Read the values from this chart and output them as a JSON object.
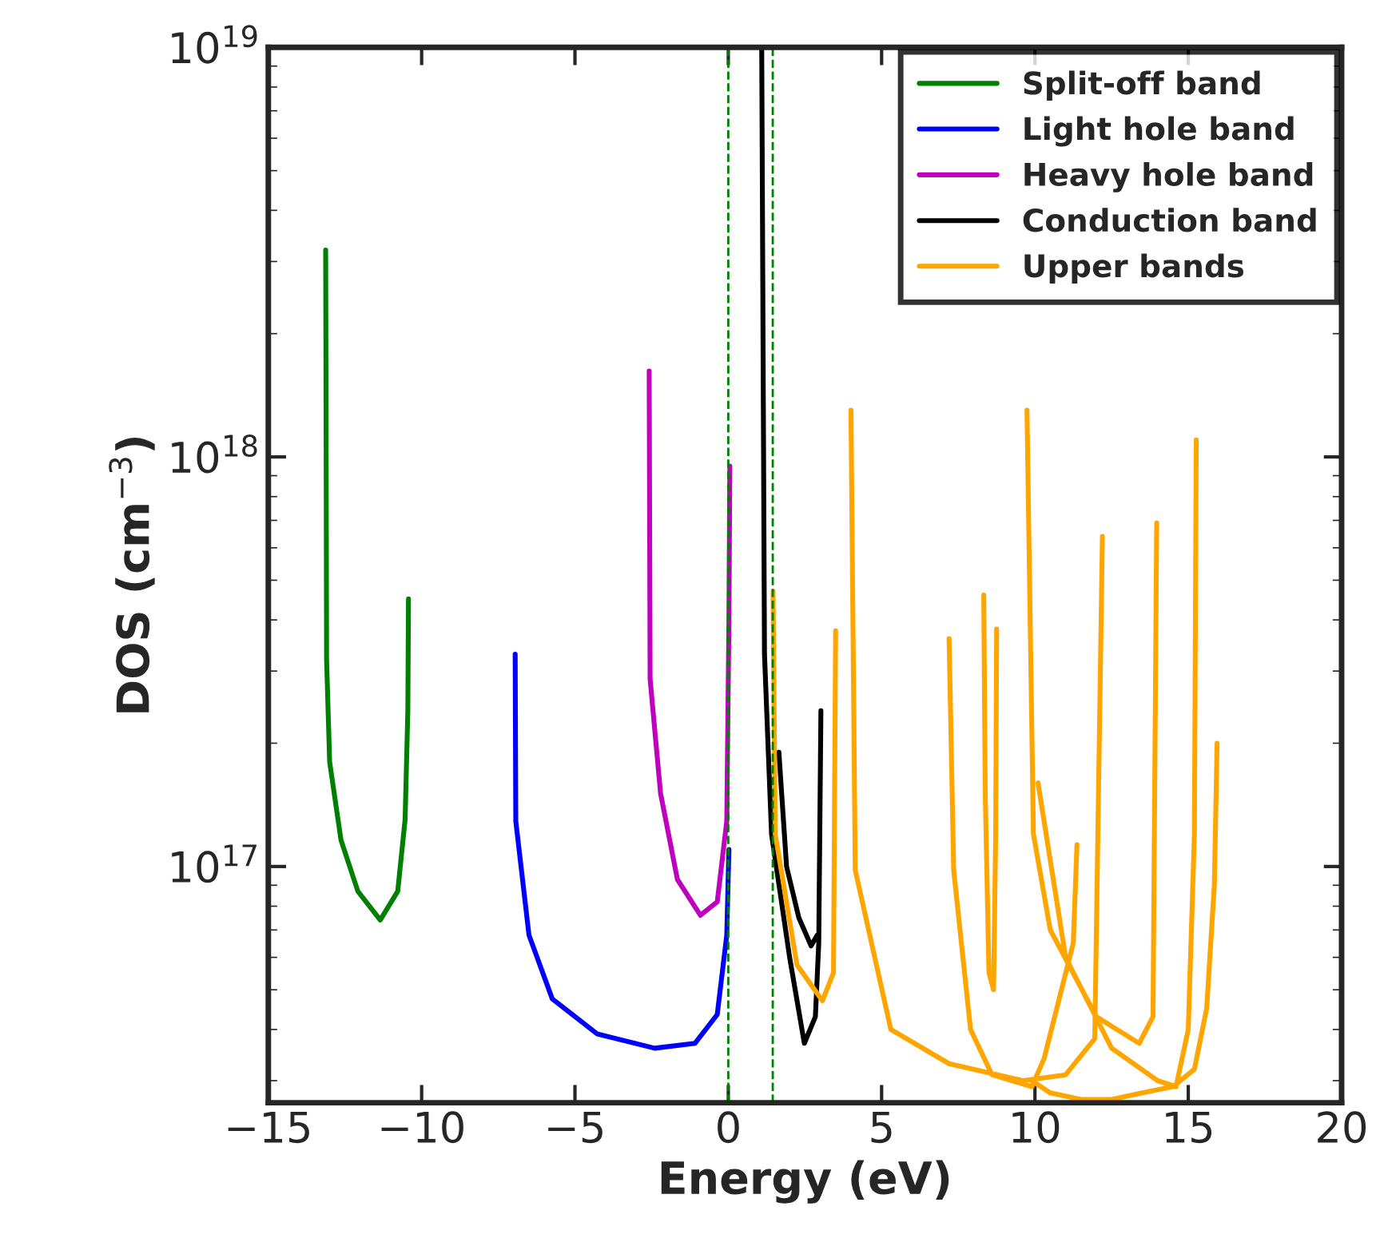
{
  "chart_data": {
    "type": "line",
    "xlabel": "Energy (eV)",
    "ylabel": "DOS (cm$^{−3}$)",
    "log": "y",
    "grid": false,
    "legend": "top right",
    "line_style": "solid",
    "marker": "none",
    "xlim": [
      -15,
      20
    ],
    "xticks": [
      {
        "value": -15,
        "label": "−15"
      },
      {
        "value": -10,
        "label": "−10"
      },
      {
        "value": -5,
        "label": "−5"
      },
      0,
      5,
      10,
      15,
      20
    ],
    "ylim": [
      2.65e+16,
      1e+19
    ],
    "yticks": [
      {
        "value": 1e+17,
        "label": "10$^{17}$"
      },
      {
        "value": 1e+18,
        "label": "10$^{18}$"
      },
      {
        "value": 1e+19,
        "label": "10$^{19}$"
      }
    ],
    "ref_lines": [
      {
        "axis": "x",
        "value": 0,
        "color": "#008000",
        "line_style": "dashed"
      },
      {
        "axis": "x",
        "value": 1.45,
        "color": "#008000",
        "line_style": "dashed"
      }
    ],
    "series": [
      {
        "name": "Split-off band",
        "color": "#008000",
        "x": [
          -13.13,
          -13.12,
          -13.1,
          -13.0,
          -12.63,
          -12.08,
          -11.35,
          -10.78,
          -10.54,
          -10.45,
          -10.43
        ],
        "values": [
          3.2e+18,
          1.6e+18,
          3.2e+17,
          1.8e+17,
          1.16e+17,
          8.7e+16,
          7.4e+16,
          8.7e+16,
          1.3e+17,
          2.4e+17,
          4.5e+17
        ]
      },
      {
        "name": "Light hole band",
        "color": "#0000ff",
        "x": [
          -6.95,
          -6.93,
          -6.5,
          -5.74,
          -4.27,
          -2.4,
          -1.09,
          -0.36,
          -0.05,
          0.02
        ],
        "values": [
          3.3e+17,
          1.29e+17,
          6.8e+16,
          4.75e+16,
          3.9e+16,
          3.6e+16,
          3.7e+16,
          4.35e+16,
          6.8e+16,
          1.1e+17
        ]
      },
      {
        "name": "Heavy hole band",
        "color": "#bf00bf",
        "x": [
          -2.58,
          -2.55,
          -2.21,
          -1.66,
          -0.91,
          -0.36,
          -0.05,
          0.02,
          0.05
        ],
        "values": [
          1.62e+18,
          2.87e+17,
          1.51e+17,
          9.3e+16,
          7.6e+16,
          8.2e+16,
          1.29e+17,
          3.95e+17,
          9.5e+17
        ]
      },
      {
        "name": "Conduction band",
        "color": "#000000",
        "x": [
          1.09,
          1.18,
          1.41,
          2.0,
          2.48,
          2.84,
          2.95,
          3.02,
          null,
          1.65,
          1.9,
          2.3,
          2.7,
          2.9
        ],
        "values": [
          1e+19,
          3.3e+17,
          1.2e+17,
          6e+16,
          3.7e+16,
          4.3e+16,
          6.5e+16,
          2.4e+17,
          null,
          1.9e+17,
          1e+17,
          7.5e+16,
          6.4e+16,
          6.8e+16
        ]
      },
      {
        "name": "Upper bands",
        "color": "#ffa500",
        "x": [
          1.46,
          1.53,
          2.24,
          3.07,
          3.43,
          3.5,
          null,
          4.0,
          4.14,
          5.3,
          7.2,
          9.6,
          11.0,
          11.95,
          12.2,
          null,
          7.2,
          7.35,
          7.9,
          8.6,
          9.9,
          10.3,
          11.25,
          11.37,
          null,
          8.33,
          8.38,
          8.5,
          8.65,
          8.72,
          8.75,
          null,
          9.74,
          9.95,
          10.5,
          12.0,
          13.4,
          13.85,
          13.97,
          null,
          10.1,
          11.0,
          12.5,
          14.0,
          14.6,
          15.0,
          15.2,
          15.26,
          null,
          9.9,
          10.5,
          11.5,
          12.5,
          13.5,
          14.5,
          15.2,
          15.6,
          15.85,
          15.94
        ],
        "values": [
          4.7e+17,
          1.2e+17,
          5.75e+16,
          4.7e+16,
          5.5e+16,
          3.76e+17,
          null,
          1.3e+18,
          9.8e+16,
          4e+16,
          3.3e+16,
          3e+16,
          3.1e+16,
          3.8e+16,
          6.4e+17,
          null,
          3.6e+17,
          9.8e+16,
          4e+16,
          3.1e+16,
          2.9e+16,
          3.4e+16,
          6.5e+16,
          1.13e+17,
          null,
          4.6e+17,
          1.5e+17,
          5.5e+16,
          5e+16,
          1.2e+17,
          3.8e+17,
          null,
          1.3e+18,
          1.2e+17,
          7e+16,
          4.3e+16,
          3.7e+16,
          4.3e+16,
          6.9e+17,
          null,
          1.6e+17,
          6e+16,
          3.6e+16,
          3e+16,
          2.9e+16,
          4e+16,
          1.2e+17,
          1.1e+18,
          null,
          3e+16,
          2.8e+16,
          2.7e+16,
          2.7e+16,
          2.8e+16,
          2.9e+16,
          3.2e+16,
          4.5e+16,
          9e+16,
          2e+17
        ]
      }
    ]
  }
}
